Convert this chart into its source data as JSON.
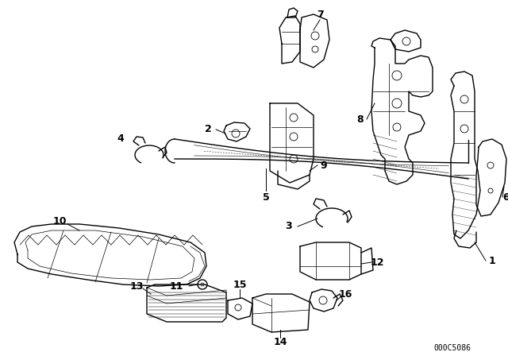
{
  "bg_color": "#ffffff",
  "line_color": "#000000",
  "watermark_text": "000C5086",
  "figsize": [
    6.4,
    4.48
  ],
  "dpi": 100,
  "xlim": [
    0,
    640
  ],
  "ylim": [
    0,
    448
  ]
}
